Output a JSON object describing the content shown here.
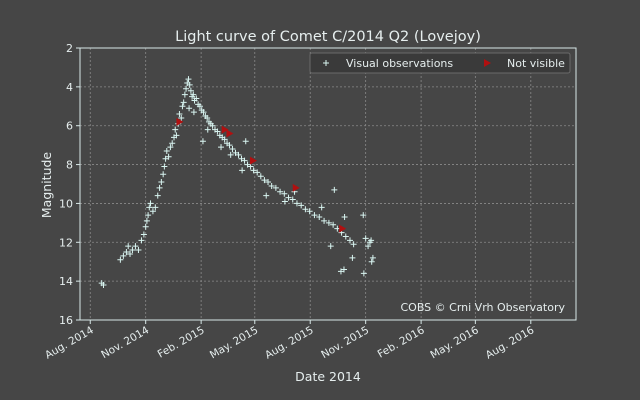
{
  "chart_data": {
    "type": "scatter",
    "title": "Light curve of Comet C/2014 Q2 (Lovejoy)",
    "xlabel": "Date 2014",
    "ylabel": "Magnitude",
    "watermark": "COBS © Crni Vrh Observatory",
    "x_scale": "date",
    "xlim": [
      "2014-07-15",
      "2016-10-15"
    ],
    "ylim": [
      16,
      2
    ],
    "y_inverted": true,
    "grid": true,
    "legend_position": "top-right",
    "x_ticks": [
      {
        "date": "2014-08-01",
        "label": "Aug. 2014"
      },
      {
        "date": "2014-11-01",
        "label": "Nov. 2014"
      },
      {
        "date": "2015-02-01",
        "label": "Feb. 2015"
      },
      {
        "date": "2015-05-01",
        "label": "May. 2015"
      },
      {
        "date": "2015-08-01",
        "label": "Aug. 2015"
      },
      {
        "date": "2015-11-01",
        "label": "Nov. 2015"
      },
      {
        "date": "2016-02-01",
        "label": "Feb. 2016"
      },
      {
        "date": "2016-05-01",
        "label": "May. 2016"
      },
      {
        "date": "2016-08-01",
        "label": "Aug. 2016"
      }
    ],
    "y_ticks": [
      2,
      4,
      6,
      8,
      10,
      12,
      14,
      16
    ],
    "colors": {
      "background": "#464646",
      "plot_background": "#464646",
      "axes": "#d8e8e8",
      "text": "#e6eeee",
      "grid": "#8a8a8a",
      "visual": "#d8f4f0",
      "not_visible": "#b01010"
    },
    "series": [
      {
        "name": "Visual observations",
        "marker": "plus",
        "points": [
          [
            "2014-08-20",
            14.1
          ],
          [
            "2014-08-23",
            14.2
          ],
          [
            "2014-09-20",
            12.9
          ],
          [
            "2014-09-25",
            12.7
          ],
          [
            "2014-09-30",
            12.5
          ],
          [
            "2014-10-03",
            12.2
          ],
          [
            "2014-10-06",
            12.6
          ],
          [
            "2014-10-10",
            12.4
          ],
          [
            "2014-10-15",
            12.2
          ],
          [
            "2014-10-20",
            12.4
          ],
          [
            "2014-10-25",
            11.9
          ],
          [
            "2014-10-29",
            11.6
          ],
          [
            "2014-11-01",
            11.2
          ],
          [
            "2014-11-03",
            10.9
          ],
          [
            "2014-11-05",
            10.6
          ],
          [
            "2014-11-07",
            10.2
          ],
          [
            "2014-11-09",
            10.0
          ],
          [
            "2014-11-13",
            10.4
          ],
          [
            "2014-11-17",
            10.2
          ],
          [
            "2014-11-21",
            9.6
          ],
          [
            "2014-11-24",
            9.2
          ],
          [
            "2014-11-27",
            8.9
          ],
          [
            "2014-11-30",
            8.5
          ],
          [
            "2014-12-02",
            8.1
          ],
          [
            "2014-12-04",
            7.7
          ],
          [
            "2014-12-06",
            7.3
          ],
          [
            "2014-12-09",
            7.6
          ],
          [
            "2014-12-12",
            7.1
          ],
          [
            "2014-12-15",
            6.9
          ],
          [
            "2014-12-18",
            6.6
          ],
          [
            "2014-12-20",
            6.2
          ],
          [
            "2014-12-22",
            6.5
          ],
          [
            "2014-12-25",
            5.9
          ],
          [
            "2014-12-27",
            5.4
          ],
          [
            "2014-12-30",
            5.6
          ],
          [
            "2015-01-01",
            5.0
          ],
          [
            "2015-01-03",
            4.8
          ],
          [
            "2015-01-05",
            4.4
          ],
          [
            "2015-01-07",
            4.1
          ],
          [
            "2015-01-09",
            3.8
          ],
          [
            "2015-01-11",
            3.6
          ],
          [
            "2015-01-13",
            3.9
          ],
          [
            "2015-01-15",
            4.2
          ],
          [
            "2015-01-17",
            4.5
          ],
          [
            "2015-01-19",
            4.4
          ],
          [
            "2015-01-21",
            4.7
          ],
          [
            "2015-01-24",
            4.6
          ],
          [
            "2015-01-27",
            4.9
          ],
          [
            "2015-01-30",
            5.0
          ],
          [
            "2015-02-02",
            5.2
          ],
          [
            "2015-02-05",
            5.3
          ],
          [
            "2015-02-08",
            5.5
          ],
          [
            "2015-02-11",
            5.6
          ],
          [
            "2015-02-14",
            5.8
          ],
          [
            "2015-02-17",
            5.9
          ],
          [
            "2015-02-20",
            6.0
          ],
          [
            "2015-02-24",
            6.2
          ],
          [
            "2015-02-28",
            6.3
          ],
          [
            "2015-03-04",
            6.5
          ],
          [
            "2015-03-08",
            6.6
          ],
          [
            "2015-03-12",
            6.7
          ],
          [
            "2015-03-16",
            6.9
          ],
          [
            "2015-03-20",
            7.0
          ],
          [
            "2015-03-25",
            7.2
          ],
          [
            "2015-03-30",
            7.4
          ],
          [
            "2015-04-04",
            7.5
          ],
          [
            "2015-04-09",
            7.7
          ],
          [
            "2015-04-14",
            7.8
          ],
          [
            "2015-04-19",
            8.0
          ],
          [
            "2015-04-24",
            8.1
          ],
          [
            "2015-04-29",
            8.3
          ],
          [
            "2015-05-05",
            8.4
          ],
          [
            "2015-05-11",
            8.6
          ],
          [
            "2015-05-17",
            8.8
          ],
          [
            "2015-05-23",
            8.9
          ],
          [
            "2015-05-29",
            9.1
          ],
          [
            "2015-06-05",
            9.2
          ],
          [
            "2015-06-12",
            9.4
          ],
          [
            "2015-06-19",
            9.5
          ],
          [
            "2015-06-26",
            9.7
          ],
          [
            "2015-07-03",
            9.8
          ],
          [
            "2015-07-10",
            10.0
          ],
          [
            "2015-07-17",
            10.1
          ],
          [
            "2015-07-24",
            10.3
          ],
          [
            "2015-07-31",
            10.4
          ],
          [
            "2015-08-08",
            10.6
          ],
          [
            "2015-08-16",
            10.7
          ],
          [
            "2015-08-24",
            10.9
          ],
          [
            "2015-09-01",
            11.0
          ],
          [
            "2015-09-08",
            11.1
          ],
          [
            "2015-09-15",
            11.3
          ],
          [
            "2015-09-22",
            11.5
          ],
          [
            "2015-09-29",
            11.7
          ],
          [
            "2015-10-06",
            11.9
          ],
          [
            "2015-10-12",
            12.1
          ],
          [
            "2015-01-12",
            5.1
          ],
          [
            "2015-01-20",
            5.3
          ],
          [
            "2015-02-04",
            6.8
          ],
          [
            "2015-02-12",
            6.2
          ],
          [
            "2015-03-06",
            7.1
          ],
          [
            "2015-03-22",
            7.5
          ],
          [
            "2015-04-10",
            8.3
          ],
          [
            "2015-04-16",
            6.8
          ],
          [
            "2015-05-20",
            9.6
          ],
          [
            "2015-06-20",
            9.9
          ],
          [
            "2015-07-06",
            9.4
          ],
          [
            "2015-08-20",
            10.2
          ],
          [
            "2015-09-04",
            12.2
          ],
          [
            "2015-09-10",
            9.3
          ],
          [
            "2015-09-21",
            13.5
          ],
          [
            "2015-09-26",
            13.4
          ],
          [
            "2015-09-27",
            10.7
          ],
          [
            "2015-10-10",
            12.8
          ],
          [
            "2015-10-28",
            10.6
          ],
          [
            "2015-10-29",
            13.6
          ],
          [
            "2015-11-01",
            11.8
          ],
          [
            "2015-11-05",
            12.2
          ],
          [
            "2015-11-08",
            12.0
          ],
          [
            "2015-11-11",
            13.0
          ],
          [
            "2015-11-13",
            12.8
          ],
          [
            "2015-11-10",
            11.9
          ]
        ]
      },
      {
        "name": "Not visible",
        "marker": "triangle-right",
        "points": [
          [
            "2014-12-27",
            5.8
          ],
          [
            "2015-03-12",
            6.2
          ],
          [
            "2015-03-20",
            6.4
          ],
          [
            "2015-04-28",
            7.8
          ],
          [
            "2015-07-08",
            9.2
          ],
          [
            "2015-09-23",
            11.3
          ]
        ]
      }
    ]
  }
}
